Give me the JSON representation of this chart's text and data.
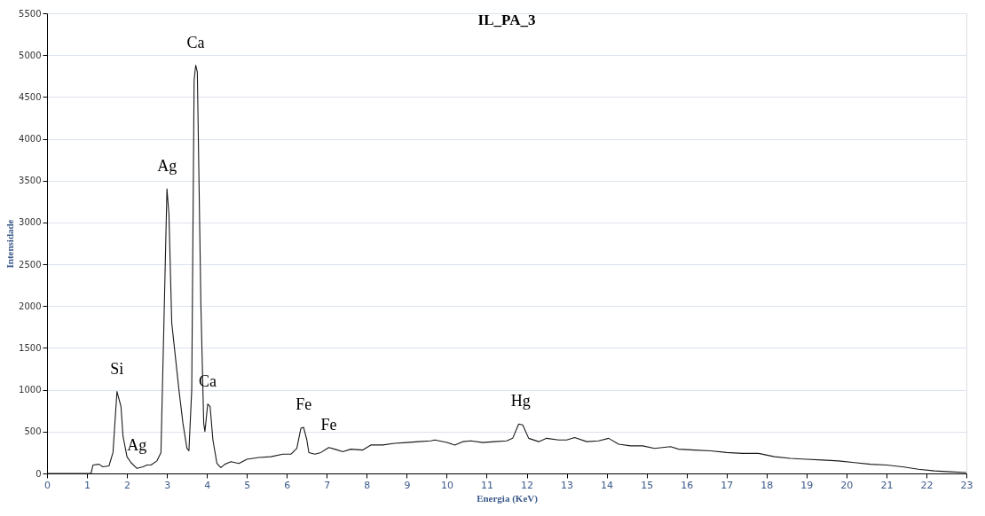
{
  "chart_data": {
    "type": "line",
    "title": "IL_PA_3",
    "xlabel": "Energia (KeV)",
    "ylabel": "Intensidade",
    "x": [
      0,
      1.1,
      1.15,
      1.3,
      1.4,
      1.55,
      1.65,
      1.75,
      1.85,
      1.9,
      2.0,
      2.1,
      2.25,
      2.4,
      2.5,
      2.6,
      2.75,
      2.85,
      2.92,
      3.0,
      3.05,
      3.12,
      3.3,
      3.4,
      3.5,
      3.55,
      3.62,
      3.68,
      3.72,
      3.76,
      3.85,
      3.92,
      3.95,
      4.02,
      4.08,
      4.15,
      4.25,
      4.35,
      4.45,
      4.6,
      4.8,
      5.0,
      5.3,
      5.6,
      5.9,
      6.1,
      6.25,
      6.35,
      6.42,
      6.5,
      6.55,
      6.7,
      6.85,
      7.05,
      7.2,
      7.4,
      7.6,
      7.9,
      8.1,
      8.4,
      8.7,
      9.0,
      9.3,
      9.6,
      9.7,
      10.0,
      10.2,
      10.4,
      10.6,
      10.9,
      11.2,
      11.5,
      11.65,
      11.8,
      11.9,
      12.05,
      12.3,
      12.5,
      12.8,
      13.0,
      13.2,
      13.5,
      13.8,
      14.05,
      14.3,
      14.6,
      14.9,
      15.2,
      15.6,
      15.8,
      16.2,
      16.6,
      17.0,
      17.4,
      17.8,
      18.2,
      18.6,
      19.0,
      19.4,
      19.8,
      20.2,
      20.6,
      21.0,
      21.4,
      21.8,
      22.2,
      22.6,
      23.0
    ],
    "series": [
      {
        "color": "#1a1a1a",
        "values": [
          0,
          0,
          100,
          110,
          80,
          90,
          250,
          980,
          800,
          450,
          200,
          130,
          60,
          80,
          100,
          100,
          150,
          250,
          1700,
          3400,
          3100,
          1800,
          1000,
          600,
          300,
          270,
          1000,
          4700,
          4880,
          4800,
          2000,
          600,
          500,
          830,
          800,
          400,
          120,
          70,
          110,
          140,
          120,
          170,
          190,
          200,
          230,
          230,
          300,
          540,
          550,
          400,
          250,
          230,
          250,
          310,
          290,
          260,
          290,
          280,
          340,
          340,
          360,
          370,
          380,
          390,
          400,
          370,
          340,
          380,
          390,
          370,
          380,
          390,
          420,
          590,
          580,
          420,
          380,
          420,
          400,
          400,
          430,
          380,
          390,
          420,
          350,
          330,
          330,
          300,
          320,
          290,
          280,
          270,
          250,
          240,
          240,
          200,
          180,
          170,
          160,
          150,
          130,
          110,
          100,
          80,
          50,
          30,
          20,
          10
        ]
      }
    ],
    "xlim": [
      0,
      23
    ],
    "xticks": [
      0,
      1,
      2,
      3,
      4,
      5,
      6,
      7,
      8,
      9,
      10,
      11,
      12,
      13,
      14,
      15,
      16,
      17,
      18,
      19,
      20,
      21,
      22,
      23
    ],
    "ylim": [
      0,
      5500
    ],
    "yticks": [
      0,
      500,
      1000,
      1500,
      2000,
      2500,
      3000,
      3500,
      4000,
      4500,
      5000,
      5500
    ],
    "grid": "y",
    "marker": "none",
    "line_style": "solid",
    "annotations": [
      {
        "text": "Si",
        "x": 1.75,
        "y": 980
      },
      {
        "text": "Ag",
        "x": 2.25,
        "y": 60
      },
      {
        "text": "Ag",
        "x": 3.0,
        "y": 3400
      },
      {
        "text": "Ca",
        "x": 3.72,
        "y": 4880
      },
      {
        "text": "Ca",
        "x": 4.02,
        "y": 830
      },
      {
        "text": "Fe",
        "x": 6.42,
        "y": 550
      },
      {
        "text": "Fe",
        "x": 7.05,
        "y": 310
      },
      {
        "text": "Hg",
        "x": 11.85,
        "y": 590
      }
    ]
  }
}
